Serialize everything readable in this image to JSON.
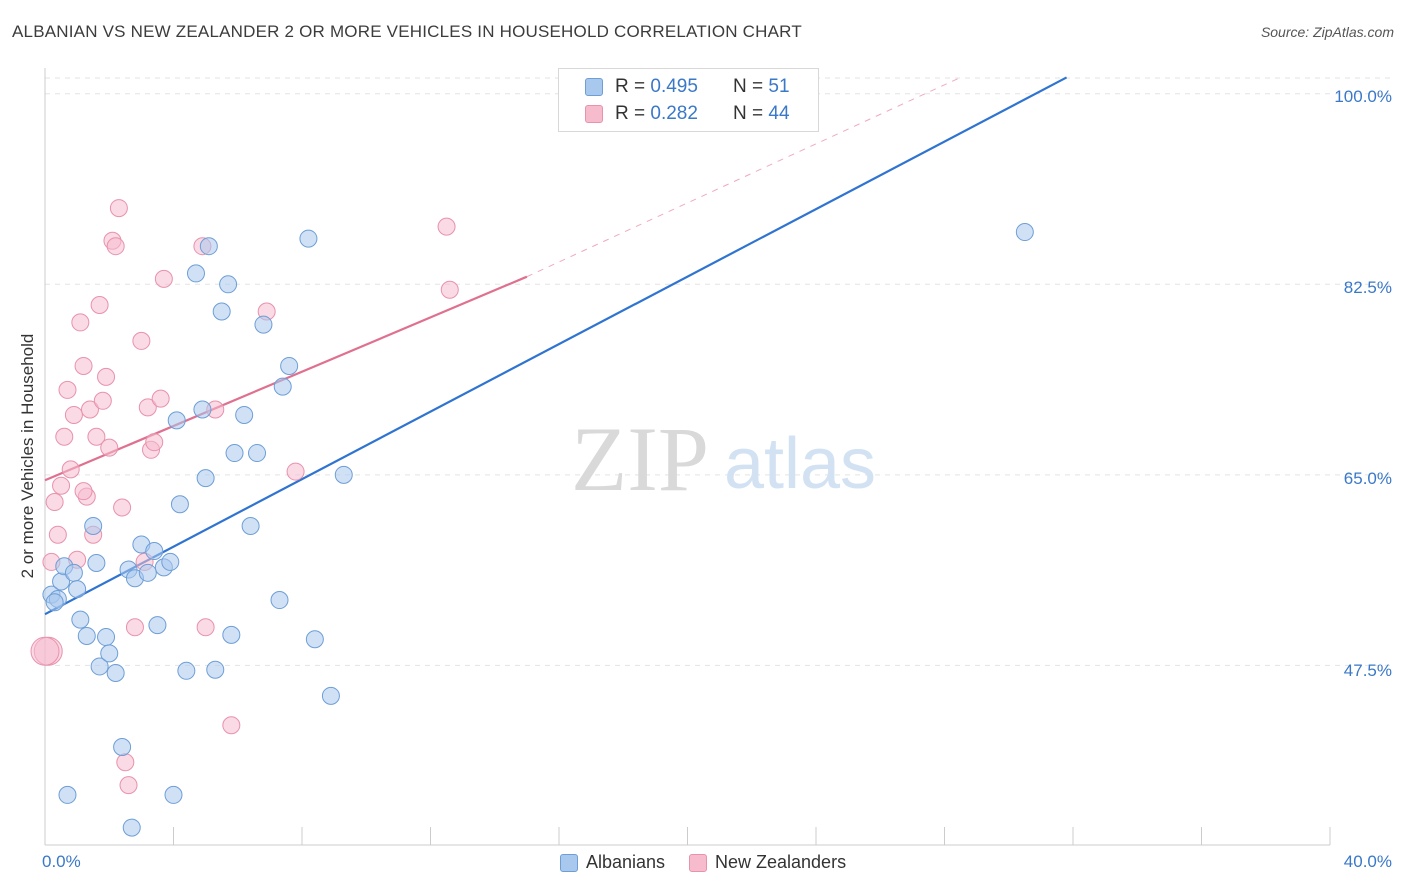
{
  "title": "ALBANIAN VS NEW ZEALANDER 2 OR MORE VEHICLES IN HOUSEHOLD CORRELATION CHART",
  "source": "Source: ZipAtlas.com",
  "watermark": {
    "zip": "ZIP",
    "atlas": "atlas"
  },
  "colors": {
    "blue_fill": "#a9c8ee",
    "blue_stroke": "#6d9ed6",
    "blue_line": "#2f74d0",
    "pink_fill": "#f6bccd",
    "pink_stroke": "#e892ac",
    "pink_line": "#e0708f",
    "axis_text": "#3a78c8",
    "grid": "#e3e3e3"
  },
  "legend": {
    "rows": [
      {
        "r_label": "R =",
        "r_value": "0.495",
        "n_label": "N =",
        "n_value": "51",
        "series": "Albanians"
      },
      {
        "r_label": "R =",
        "r_value": "0.282",
        "n_label": "N =",
        "n_value": "44",
        "series": "New Zealanders"
      }
    ]
  },
  "bottom_legend": {
    "items": [
      "Albanians",
      "New Zealanders"
    ]
  },
  "chart_data": {
    "type": "scatter",
    "title": "ALBANIAN VS NEW ZEALANDER 2 OR MORE VEHICLES IN HOUSEHOLD CORRELATION CHART",
    "xlabel": "",
    "ylabel": "2 or more Vehicles in Household",
    "xlim": [
      0,
      40
    ],
    "ylim": [
      31,
      102
    ],
    "x_tick_labels": [
      "0.0%",
      "40.0%"
    ],
    "y_ticks": [
      {
        "value": 47.5,
        "label": "47.5%"
      },
      {
        "value": 65.0,
        "label": "65.0%"
      },
      {
        "value": 82.5,
        "label": "82.5%"
      },
      {
        "value": 100.0,
        "label": "100.0%"
      }
    ],
    "grid": true,
    "legend_position": "top-center",
    "series": [
      {
        "name": "Albanians",
        "points": [
          [
            0.2,
            54.0
          ],
          [
            0.4,
            53.6
          ],
          [
            0.5,
            55.2
          ],
          [
            0.6,
            56.6
          ],
          [
            0.9,
            56.0
          ],
          [
            1.0,
            54.5
          ],
          [
            1.1,
            51.7
          ],
          [
            1.3,
            50.2
          ],
          [
            1.5,
            60.3
          ],
          [
            1.6,
            56.9
          ],
          [
            1.7,
            47.4
          ],
          [
            1.9,
            50.1
          ],
          [
            2.0,
            48.6
          ],
          [
            2.2,
            46.8
          ],
          [
            2.4,
            40.0
          ],
          [
            2.6,
            56.3
          ],
          [
            2.8,
            55.5
          ],
          [
            3.0,
            58.6
          ],
          [
            3.2,
            56.0
          ],
          [
            3.4,
            58.0
          ],
          [
            3.5,
            51.2
          ],
          [
            3.7,
            56.5
          ],
          [
            3.9,
            57.0
          ],
          [
            4.0,
            35.6
          ],
          [
            4.1,
            70.0
          ],
          [
            4.2,
            62.3
          ],
          [
            4.4,
            47.0
          ],
          [
            4.7,
            83.5
          ],
          [
            4.9,
            71.0
          ],
          [
            5.0,
            64.7
          ],
          [
            5.1,
            86.0
          ],
          [
            5.3,
            47.1
          ],
          [
            5.5,
            80.0
          ],
          [
            5.7,
            82.5
          ],
          [
            5.8,
            50.3
          ],
          [
            5.9,
            67.0
          ],
          [
            6.2,
            70.5
          ],
          [
            6.4,
            60.3
          ],
          [
            6.6,
            67.0
          ],
          [
            6.8,
            78.8
          ],
          [
            7.3,
            53.5
          ],
          [
            7.4,
            73.1
          ],
          [
            7.6,
            75.0
          ],
          [
            8.2,
            86.7
          ],
          [
            8.4,
            49.9
          ],
          [
            8.9,
            44.7
          ],
          [
            9.3,
            65.0
          ],
          [
            30.5,
            87.3
          ],
          [
            0.7,
            35.6
          ],
          [
            2.7,
            32.6
          ],
          [
            0.3,
            53.3
          ]
        ],
        "trend": {
          "x0": 0,
          "y0": 52.2,
          "x1": 31.8,
          "y1": 101.5
        }
      },
      {
        "name": "New Zealanders",
        "points": [
          [
            0.1,
            48.8
          ],
          [
            0.2,
            57.0
          ],
          [
            0.3,
            62.5
          ],
          [
            0.4,
            59.5
          ],
          [
            0.5,
            64.0
          ],
          [
            0.6,
            68.5
          ],
          [
            0.7,
            72.8
          ],
          [
            0.8,
            65.5
          ],
          [
            0.9,
            70.5
          ],
          [
            1.0,
            57.2
          ],
          [
            1.1,
            79.0
          ],
          [
            1.2,
            75.0
          ],
          [
            1.3,
            63.0
          ],
          [
            1.4,
            71.0
          ],
          [
            1.5,
            59.5
          ],
          [
            1.6,
            68.5
          ],
          [
            1.7,
            80.6
          ],
          [
            1.8,
            71.8
          ],
          [
            1.9,
            74.0
          ],
          [
            2.0,
            67.5
          ],
          [
            2.1,
            86.5
          ],
          [
            2.2,
            86.0
          ],
          [
            2.3,
            89.5
          ],
          [
            2.4,
            62.0
          ],
          [
            2.5,
            38.6
          ],
          [
            2.6,
            36.5
          ],
          [
            2.8,
            51.0
          ],
          [
            3.0,
            77.3
          ],
          [
            3.1,
            57.0
          ],
          [
            3.2,
            71.2
          ],
          [
            3.3,
            67.3
          ],
          [
            3.4,
            68.0
          ],
          [
            3.6,
            72.0
          ],
          [
            3.7,
            83.0
          ],
          [
            4.9,
            86.0
          ],
          [
            5.0,
            51.0
          ],
          [
            5.3,
            71.0
          ],
          [
            5.8,
            42.0
          ],
          [
            6.9,
            80.0
          ],
          [
            7.8,
            65.3
          ],
          [
            12.5,
            87.8
          ],
          [
            12.6,
            82.0
          ],
          [
            0.0,
            48.8
          ],
          [
            1.2,
            63.5
          ]
        ],
        "trend": {
          "x0": 0,
          "y0": 64.5,
          "x1": 15.0,
          "y1": 83.2
        },
        "trend_extension": {
          "x0": 15.0,
          "y0": 83.2,
          "x1": 28.5,
          "y1": 101.5
        }
      }
    ]
  }
}
